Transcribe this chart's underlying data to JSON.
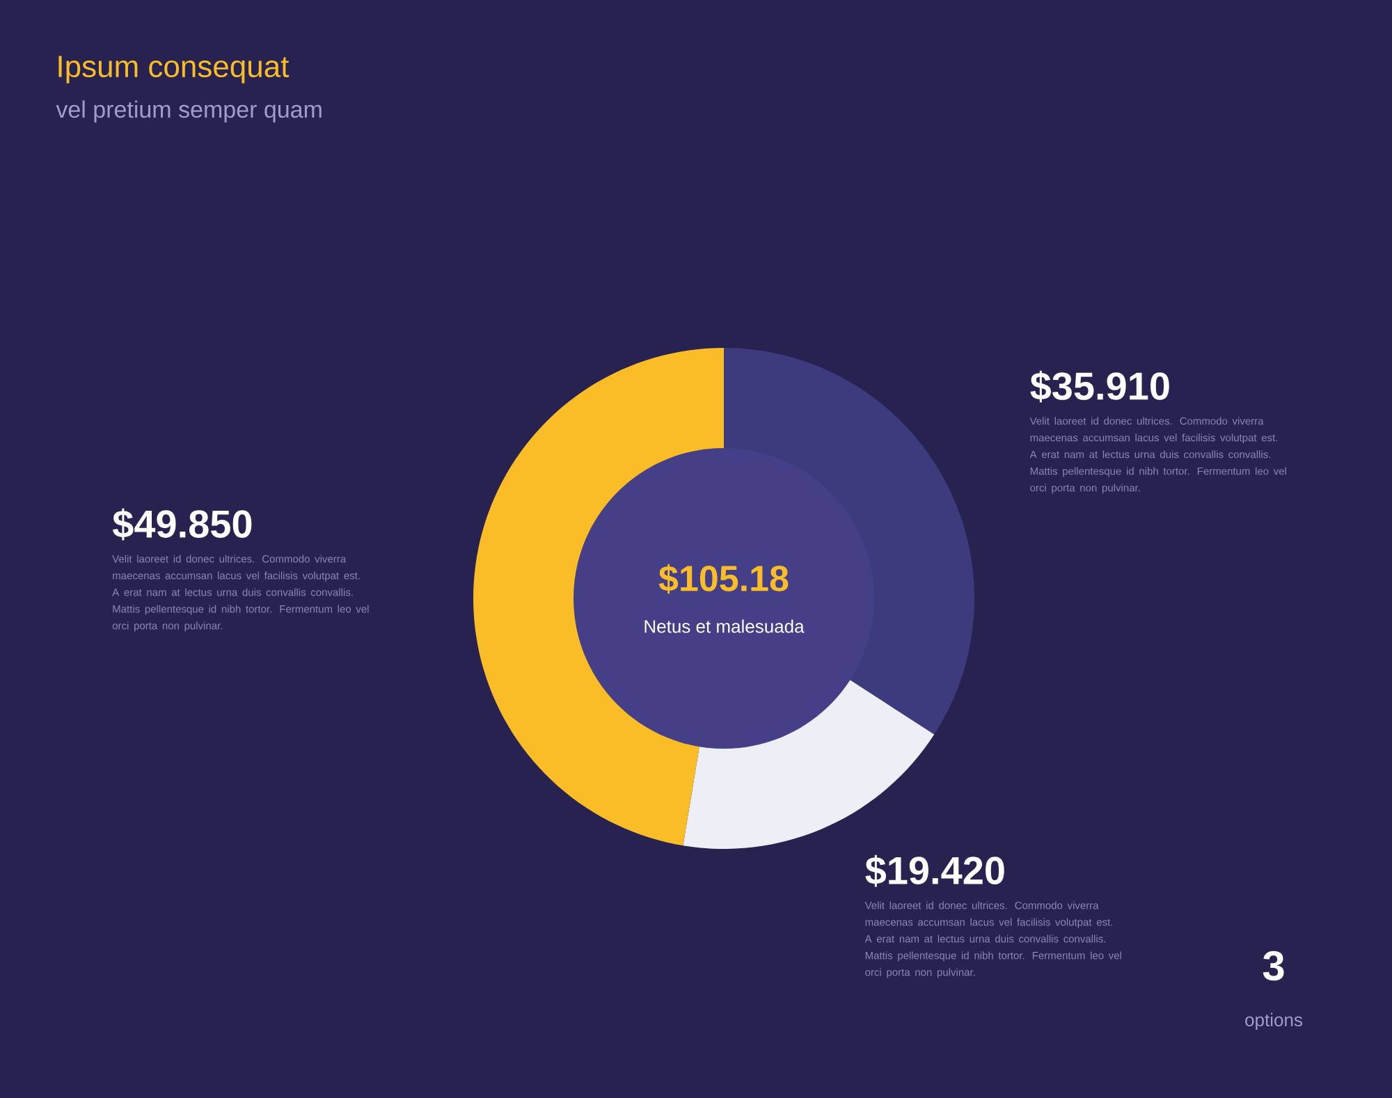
{
  "chart_data": {
    "type": "donut",
    "title": "Ipsum consequat",
    "subtitle": "vel pretium semper quam",
    "categories": [
      null,
      null,
      null
    ],
    "values": [
      35.91,
      19.42,
      49.85
    ],
    "colors": [
      "#3d3a7e",
      "#eeeff6",
      "#fbbd27"
    ],
    "value_labels": [
      "$35.910",
      "$19.420",
      "$49.850"
    ],
    "annotations": [
      "$105.18",
      "Netus et malesuada",
      "Velit laoreet id donec ultrices. Commodo viverra maecenas accumsan lacus vel facilisis volutpat est. A erat nam at lectus urna duis convallis convallis. Mattis pellentesque id nibh tortor. Fermentum leo vel orci porta non pulvinar.",
      "Velit laoreet id donec ultrices. Commodo viverra maecenas accumsan lacus vel facilisis volutpat est. A erat nam at lectus urna duis convallis convallis. Mattis pellentesque id nibh tortor. Fermentum leo vel orci porta non pulvinar.",
      "Velit laoreet id donec ultrices. Commodo viverra maecenas accumsan lacus vel facilisis volutpat est. A erat nam at lectus urna duis convallis convallis. Mattis pellentesque id nibh tortor. Fermentum leo vel orci porta non pulvinar.",
      "3",
      "options"
    ]
  }
}
